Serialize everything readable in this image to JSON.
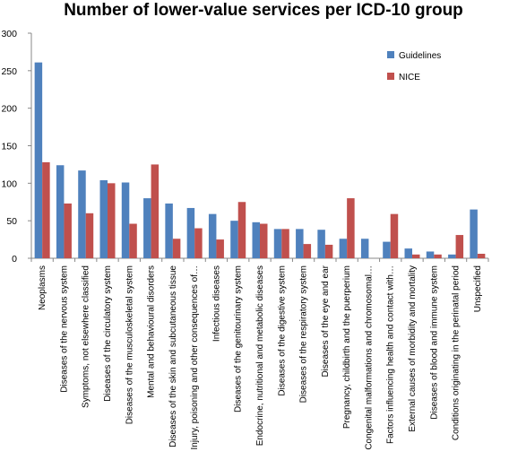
{
  "chart_data": {
    "type": "bar",
    "title": "Number of lower-value services per ICD-10 group",
    "xlabel": "",
    "ylabel": "",
    "ylim": [
      0,
      300
    ],
    "yticks": [
      0,
      50,
      100,
      150,
      200,
      250,
      300
    ],
    "grid": false,
    "legend_position": "top-right",
    "categories": [
      "Neoplasms",
      "Diseases of the nervous system",
      "Symptoms, not elsewhere classified",
      "Diseases of the circulatory system",
      "Diseases of the musculoskeletal system",
      "Mental and behavioural disorders",
      "Diseases of the skin and subcutaneous tissue",
      "Injury, poisoning and other consequences of…",
      "Infectious diseases",
      "Diseases of the genitourinary system",
      "Endocrine, nutritional and metabolic diseases",
      "Diseases of the digestive system",
      "Diseases of the respiratory system",
      "Diseases of the eye and ear",
      "Pregnancy, childbirth and the puerperium",
      "Congenital malformations and chromosomal…",
      "Factors influencing health and contact with…",
      "External causes of morbidity and mortality",
      "Diseases of blood and immune system",
      "Conditions originating in the perinatal period",
      "Unspecified"
    ],
    "series": [
      {
        "name": "Guidelines",
        "color": "#4f81bd",
        "values": [
          261,
          124,
          117,
          104,
          101,
          80,
          73,
          67,
          59,
          50,
          48,
          39,
          39,
          38,
          26,
          26,
          22,
          13,
          9,
          5,
          65
        ]
      },
      {
        "name": "NICE",
        "color": "#c0504d",
        "values": [
          128,
          73,
          60,
          100,
          46,
          125,
          26,
          40,
          25,
          75,
          46,
          39,
          19,
          18,
          80,
          0,
          59,
          5,
          5,
          31,
          6
        ]
      }
    ]
  }
}
